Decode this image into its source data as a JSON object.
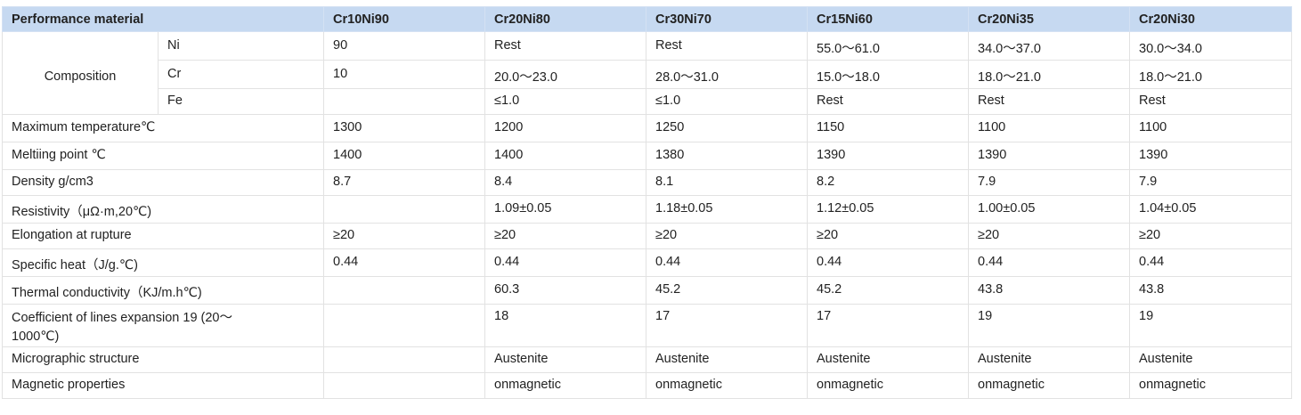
{
  "header": {
    "title": "Performance material",
    "columns": [
      "Cr10Ni90",
      "Cr20Ni80",
      "Cr30Ni70",
      "Cr15Ni60",
      "Cr20Ni35",
      "Cr20Ni30"
    ]
  },
  "composition": {
    "label": "Composition",
    "rows": [
      {
        "element": "Ni",
        "values": [
          "90",
          "Rest",
          "Rest",
          "55.0～61.0",
          "34.0～37.0",
          "30.0～34.0"
        ]
      },
      {
        "element": "Cr",
        "values": [
          "10",
          "20.0～23.0",
          "28.0～31.0",
          "15.0～18.0",
          "18.0～21.0",
          "18.0～21.0"
        ]
      },
      {
        "element": "Fe",
        "values": [
          "",
          "≤1.0",
          "≤1.0",
          "Rest",
          "Rest",
          "Rest"
        ]
      }
    ]
  },
  "properties": [
    {
      "label": "Maximum temperature℃",
      "values": [
        "1300",
        "1200",
        "1250",
        "1150",
        "1100",
        "1100"
      ]
    },
    {
      "label": "Meltiing point ℃",
      "values": [
        "1400",
        "1400",
        "1380",
        "1390",
        "1390",
        "1390"
      ]
    },
    {
      "label": "Density g/cm3",
      "values": [
        "8.7",
        "8.4",
        "8.1",
        "8.2",
        "7.9",
        "7.9"
      ]
    },
    {
      "label": "Resistivity（μΩ·m,20℃)",
      "values": [
        "",
        "1.09±0.05",
        "1.18±0.05",
        "1.12±0.05",
        "1.00±0.05",
        "1.04±0.05"
      ]
    },
    {
      "label": "Elongation at rupture",
      "values": [
        "≥20",
        "≥20",
        "≥20",
        "≥20",
        "≥20",
        "≥20"
      ]
    },
    {
      "label": "Specific heat（J/g.℃)",
      "values": [
        "0.44",
        "0.44",
        "0.44",
        "0.44",
        "0.44",
        "0.44"
      ]
    },
    {
      "label": "Thermal conductivity（KJ/m.h℃)",
      "values": [
        "",
        "60.3",
        "45.2",
        "45.2",
        "43.8",
        "43.8"
      ]
    },
    {
      "label": "Coefficient of lines expansion 19 (20～1000℃)",
      "values": [
        "",
        "18",
        "17",
        "17",
        "19",
        "19"
      ]
    },
    {
      "label": "Micrographic structure",
      "values": [
        "",
        "Austenite",
        "Austenite",
        "Austenite",
        "Austenite",
        "Austenite"
      ]
    },
    {
      "label": "Magnetic properties",
      "values": [
        "",
        "onmagnetic",
        "onmagnetic",
        "onmagnetic",
        "onmagnetic",
        "onmagnetic"
      ]
    }
  ]
}
